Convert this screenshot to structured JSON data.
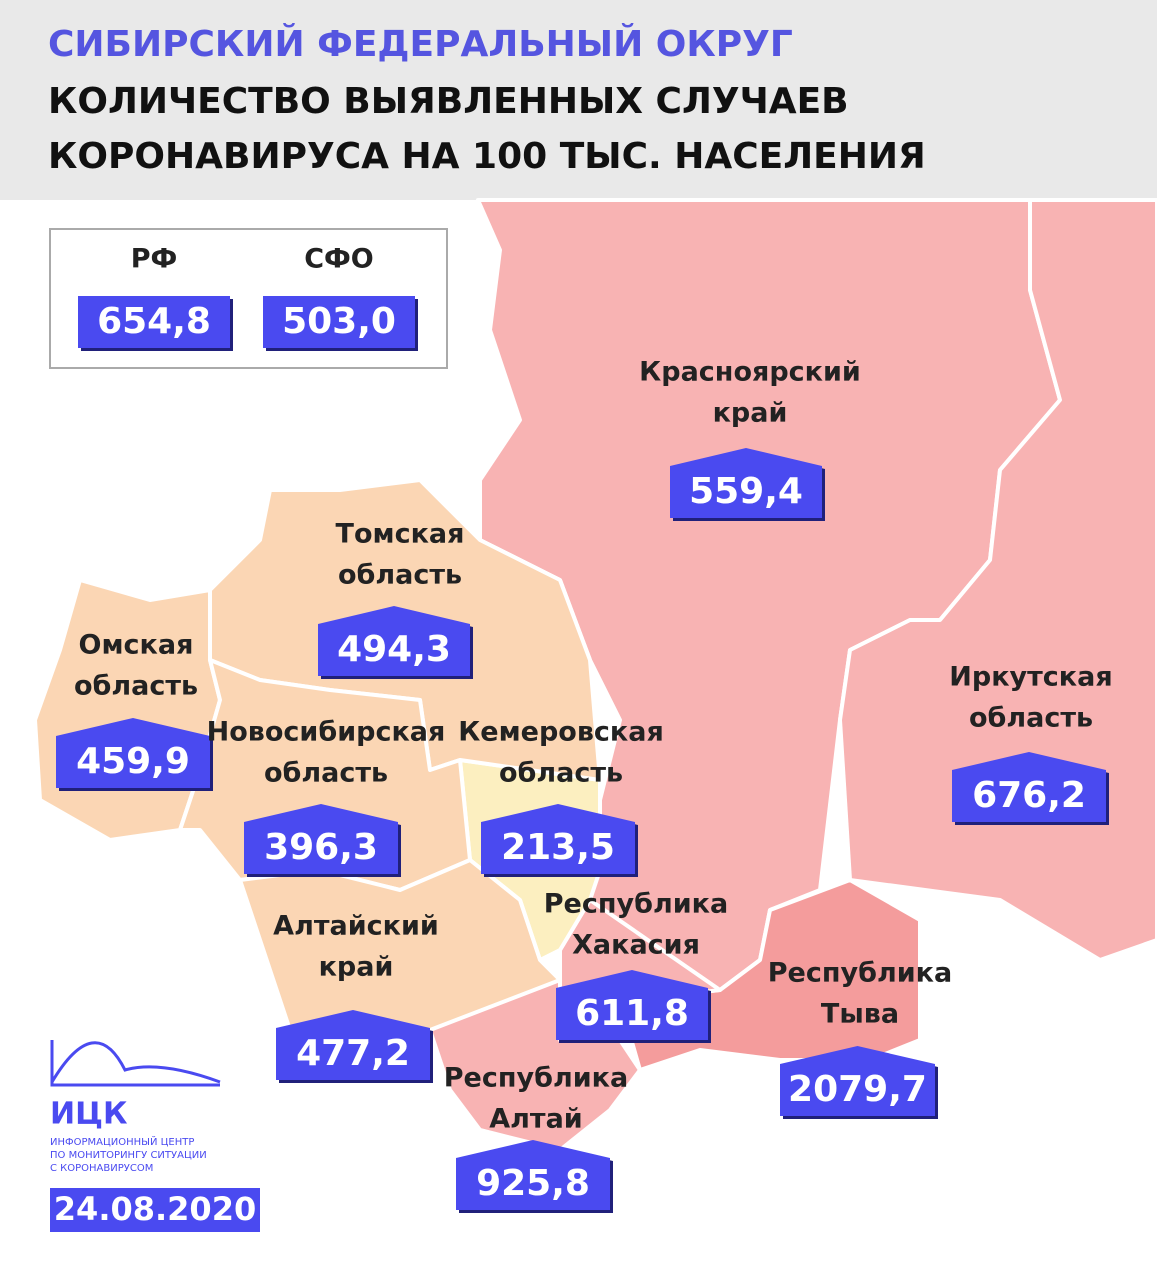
{
  "header": {
    "title": "СИБИРСКИЙ ФЕДЕРАЛЬНЫЙ ОКРУГ",
    "subtitle": [
      "КОЛИЧЕСТВО ВЫЯВЛЕННЫХ СЛУЧАЕВ",
      "КОРОНАВИРУСА НА 100 ТЫС. НАСЕЛЕНИЯ"
    ]
  },
  "summary": [
    {
      "label": "РФ",
      "value": "654,8"
    },
    {
      "label": "СФО",
      "value": "503,0"
    }
  ],
  "regions": [
    {
      "name": [
        "Красноярский",
        "край"
      ],
      "value": "559,4"
    },
    {
      "name": [
        "Томская",
        "область"
      ],
      "value": "494,3"
    },
    {
      "name": [
        "Омская",
        "область"
      ],
      "value": "459,9"
    },
    {
      "name": [
        "Новосибирская",
        "область"
      ],
      "value": "396,3"
    },
    {
      "name": [
        "Кемеровская",
        "область"
      ],
      "value": "213,5"
    },
    {
      "name": [
        "Иркутская",
        "область"
      ],
      "value": "676,2"
    },
    {
      "name": [
        "Алтайский",
        "край"
      ],
      "value": "477,2"
    },
    {
      "name": [
        "Республика",
        "Хакасия"
      ],
      "value": "611,8"
    },
    {
      "name": [
        "Республика",
        "Тыва"
      ],
      "value": "2079,7"
    },
    {
      "name": [
        "Республика",
        "Алтай"
      ],
      "value": "925,8"
    }
  ],
  "logo": {
    "name": "ИЦК",
    "caption": [
      "ИНФОРМАЦИОННЫЙ ЦЕНТР",
      "ПО МОНИТОРИНГУ СИТУАЦИИ",
      "С КОРОНАВИРУСОМ"
    ]
  },
  "date": "24.08.2020"
}
